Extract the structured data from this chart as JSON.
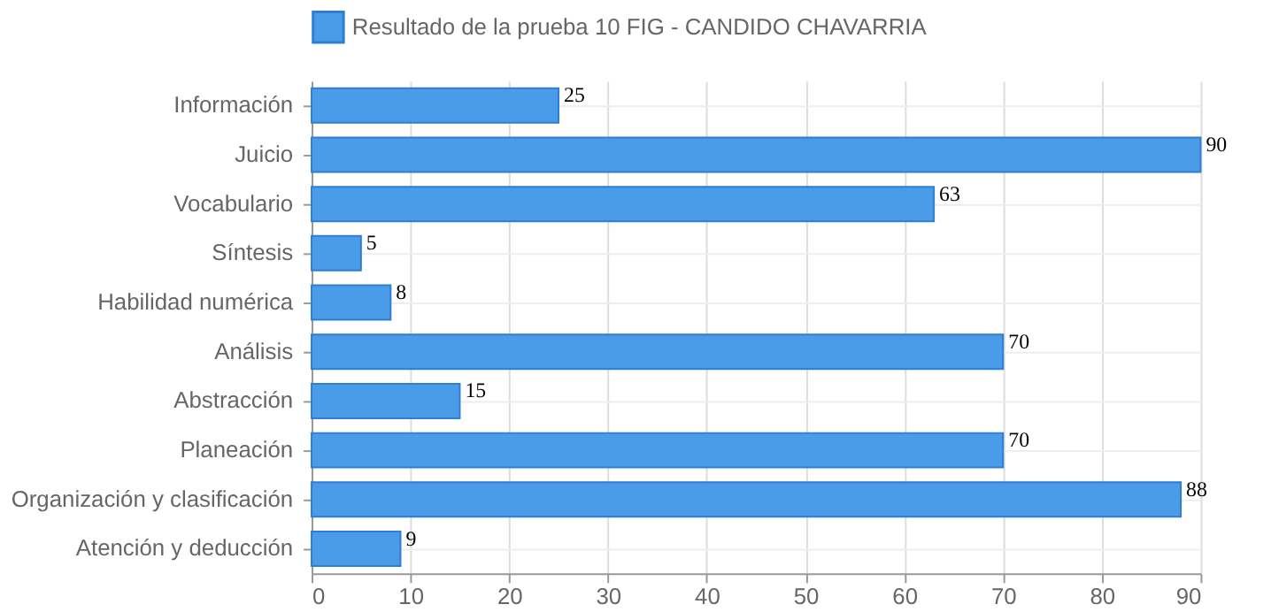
{
  "chart_data": {
    "type": "bar",
    "orientation": "horizontal",
    "categories": [
      "Información",
      "Juicio",
      "Vocabulario",
      "Síntesis",
      "Habilidad numérica",
      "Análisis",
      "Abstracción",
      "Planeación",
      "Organización y clasificación",
      "Atención y deducción"
    ],
    "series": [
      {
        "name": "Resultado de la prueba 10 FIG - CANDIDO CHAVARRIA",
        "color": "#4a9be8",
        "values": [
          25,
          90,
          63,
          5,
          8,
          70,
          15,
          70,
          88,
          9
        ]
      }
    ],
    "xlim": [
      0,
      90
    ],
    "xticks": [
      0,
      10,
      20,
      30,
      40,
      50,
      60,
      70,
      80,
      90
    ],
    "grid": true,
    "legend": "top",
    "data_labels": true
  }
}
